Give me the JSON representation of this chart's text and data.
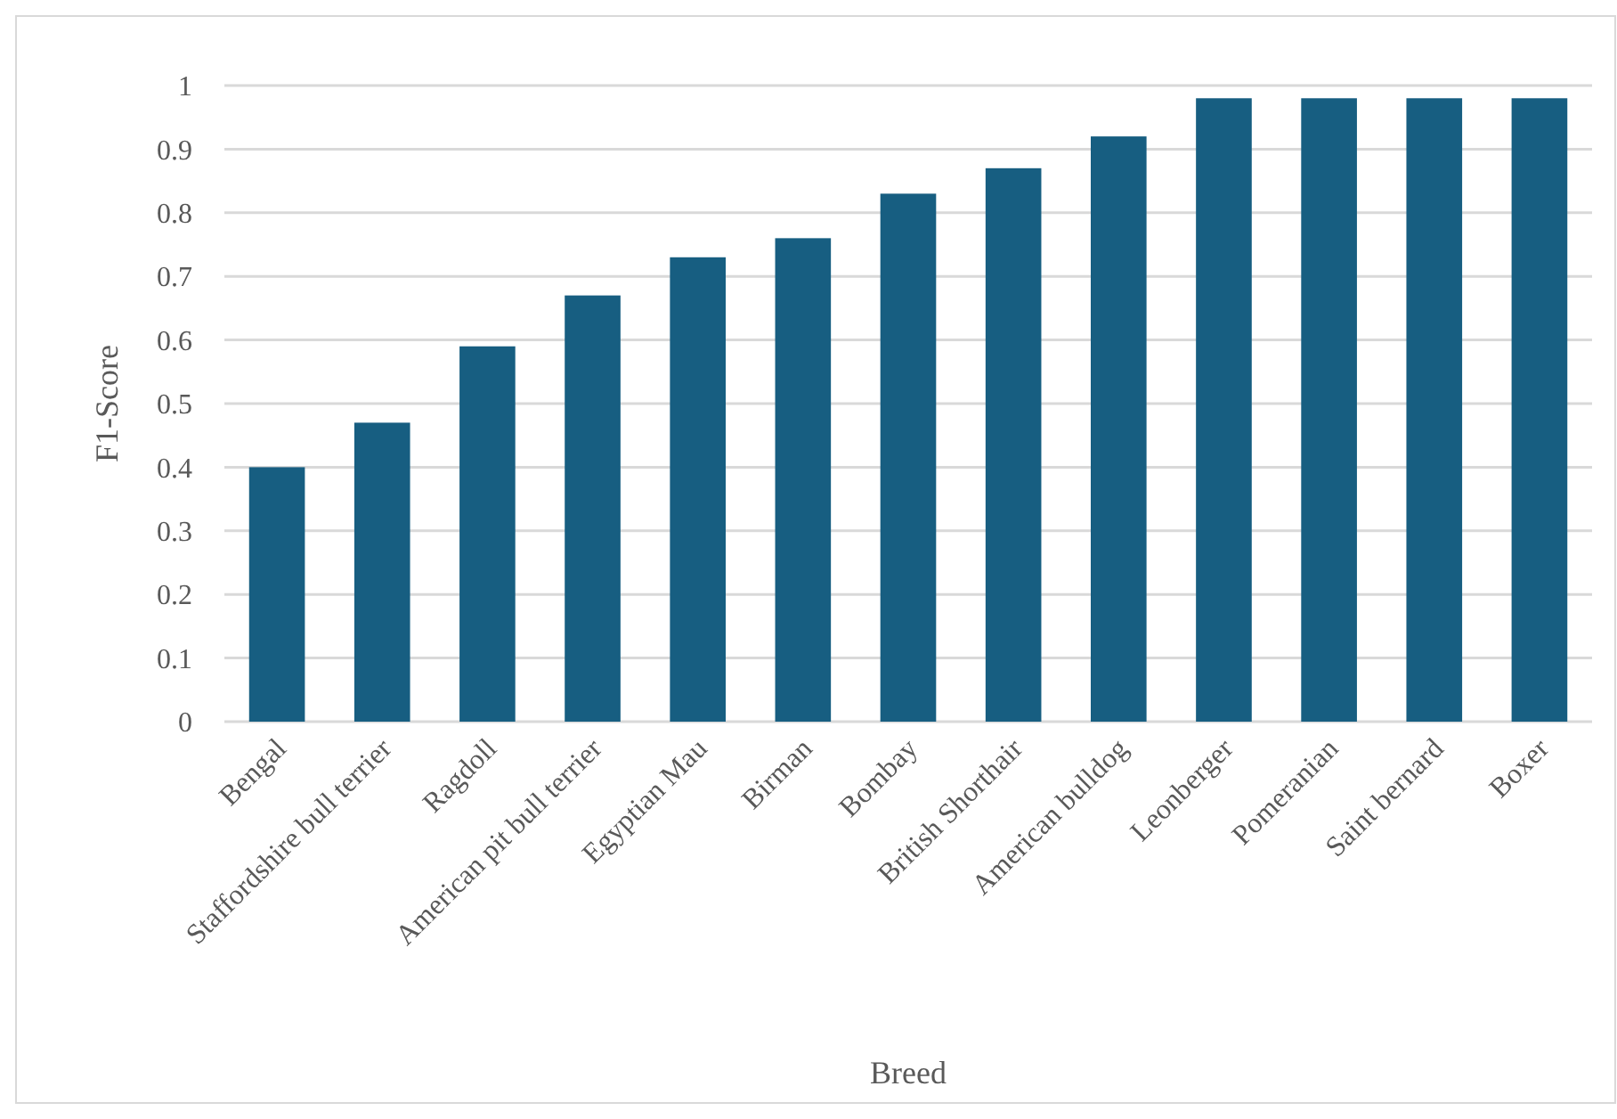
{
  "chart_data": {
    "type": "bar",
    "xlabel": "Breed",
    "ylabel": "F1-Score",
    "categories": [
      "Bengal",
      "Staffordshire bull terrier",
      "Ragdoll",
      "American pit bull terrier",
      "Egyptian Mau",
      "Birman",
      "Bombay",
      "British Shorthair",
      "American bulldog",
      "Leonberger",
      "Pomeranian",
      "Saint bernard",
      "Boxer"
    ],
    "values": [
      0.4,
      0.47,
      0.59,
      0.67,
      0.73,
      0.76,
      0.83,
      0.87,
      0.92,
      0.98,
      0.98,
      0.98,
      0.98
    ],
    "color": "#175e81",
    "ylim": [
      0,
      1
    ],
    "yticks": [
      0,
      0.1,
      0.2,
      0.3,
      0.4,
      0.5,
      0.6,
      0.7,
      0.8,
      0.9,
      1
    ],
    "grid": "y"
  }
}
